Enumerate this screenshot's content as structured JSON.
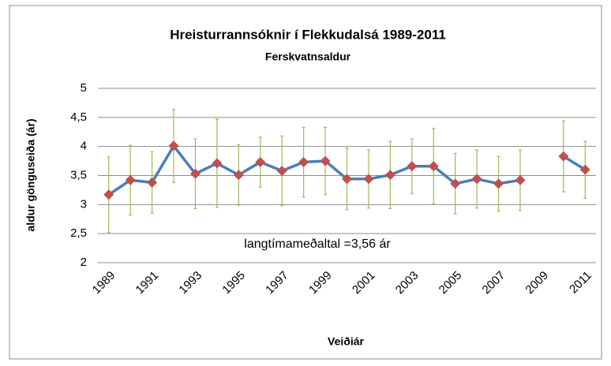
{
  "chart_data": {
    "type": "line",
    "title": "Hreisturrannsóknir í Flekkudalsá 1989-2011",
    "subtitle": "Ferskvatnsaldur",
    "y_label": "aldur gönguseiða  (ár)",
    "x_label": "Veiðiár",
    "annotation": "langtímameðaltal =3,56 ár",
    "categories": [
      "1989",
      null,
      "1991",
      null,
      "1993",
      null,
      "1995",
      null,
      "1997",
      null,
      "1999",
      null,
      "2001",
      null,
      "2003",
      null,
      "2005",
      null,
      "2007",
      null,
      "2009",
      null,
      "2011"
    ],
    "series": [
      {
        "name": "Ferskvatnsaldur",
        "color": "#4a7ebb",
        "marker_color": "#c0504d",
        "error_color": "#9bbb59",
        "values": [
          3.17,
          3.42,
          3.38,
          4.01,
          3.53,
          3.71,
          3.51,
          3.73,
          3.58,
          3.73,
          3.75,
          3.44,
          3.44,
          3.51,
          3.66,
          3.66,
          3.36,
          3.44,
          3.36,
          3.42,
          null,
          3.83,
          3.6
        ],
        "errors": [
          0.65,
          0.6,
          0.53,
          0.63,
          0.6,
          0.76,
          0.52,
          0.43,
          0.6,
          0.6,
          0.58,
          0.53,
          0.5,
          0.58,
          0.47,
          0.65,
          0.52,
          0.5,
          0.47,
          0.52,
          null,
          0.61,
          0.49
        ]
      }
    ],
    "ylim": [
      2,
      5
    ],
    "yticks": [
      2,
      {
        "value": 2.5,
        "label": "2,5"
      },
      3,
      {
        "value": 3.5,
        "label": "3,5"
      },
      4,
      {
        "value": 4.5,
        "label": "4,5"
      },
      5
    ],
    "grid": true
  }
}
